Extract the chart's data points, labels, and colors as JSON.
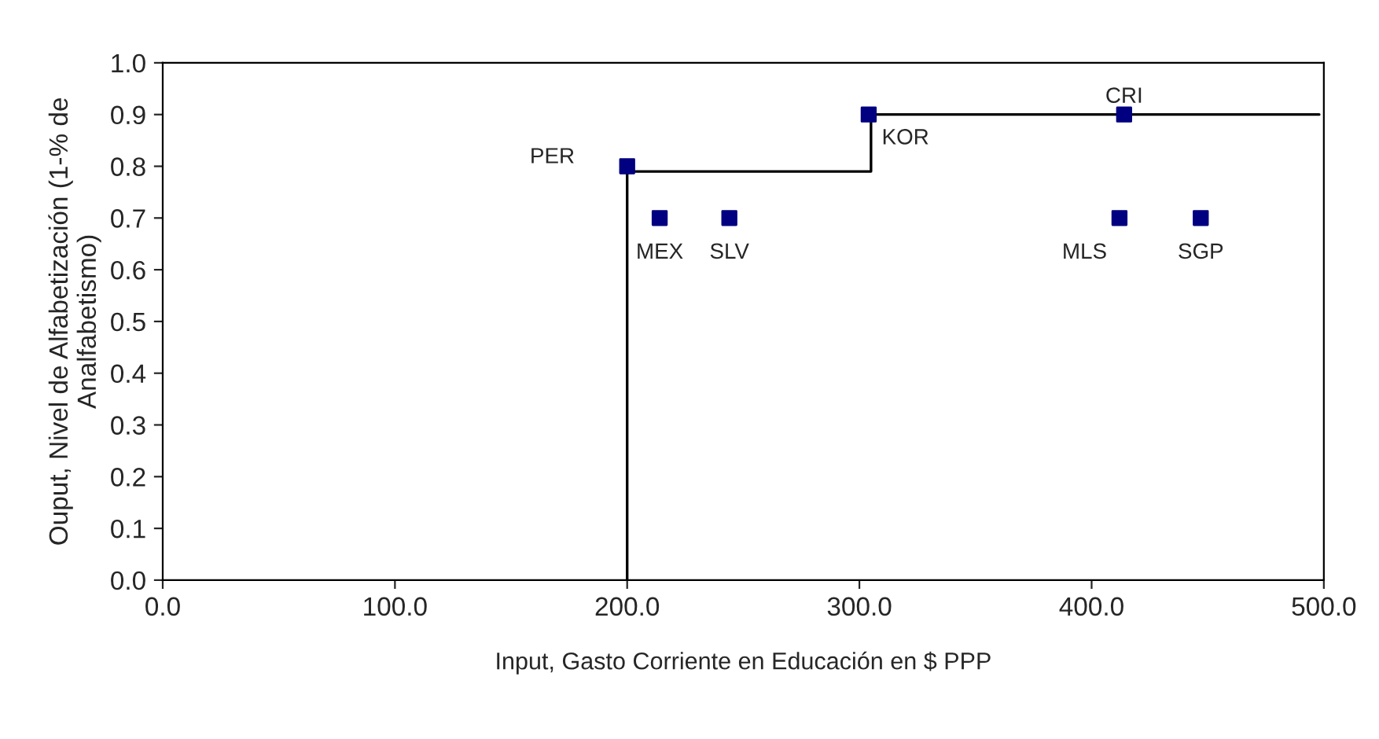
{
  "chart_data": {
    "type": "scatter",
    "xlabel": "Input, Gasto Corriente en Educación en $ PPP",
    "ylabel": "Ouput, Nivel de Alfabetización (1-% de\nAnalfabetismo)",
    "xlim": [
      0,
      500
    ],
    "xticks": [
      {
        "value": 0,
        "label": "0.0"
      },
      {
        "value": 100,
        "label": "100.0"
      },
      {
        "value": 200,
        "label": "200.0"
      },
      {
        "value": 300,
        "label": "300.0"
      },
      {
        "value": 400,
        "label": "400.0"
      },
      {
        "value": 500,
        "label": "500.0"
      }
    ],
    "ylim": [
      0,
      1
    ],
    "yticks": [
      {
        "value": 0,
        "label": "0.0"
      },
      {
        "value": 0.1,
        "label": "0.1"
      },
      {
        "value": 0.2,
        "label": "0.2"
      },
      {
        "value": 0.3,
        "label": "0.3"
      },
      {
        "value": 0.4,
        "label": "0.4"
      },
      {
        "value": 0.5,
        "label": "0.5"
      },
      {
        "value": 0.6,
        "label": "0.6"
      },
      {
        "value": 0.7,
        "label": "0.7"
      },
      {
        "value": 0.8,
        "label": "0.8"
      },
      {
        "value": 0.9,
        "label": "0.9"
      },
      {
        "value": 1.0,
        "label": "1.0"
      }
    ],
    "grid": false,
    "legend": false,
    "marker": "square",
    "series": [
      {
        "type": "line",
        "color": "#000000",
        "x": [
          200,
          200,
          305,
          305,
          498
        ],
        "values": [
          0,
          0.79,
          0.79,
          0.9,
          0.9
        ],
        "marker": "none"
      },
      {
        "color": "#000080",
        "x": [
          200,
          214,
          244,
          304,
          414,
          412,
          447
        ],
        "values": [
          0.8,
          0.7,
          0.7,
          0.9,
          0.9,
          0.7,
          0.7
        ]
      }
    ],
    "annotations": [
      {
        "text": "PER",
        "x": 200,
        "y": 0.8
      },
      {
        "text": "MEX",
        "x": 214,
        "y": 0.7
      },
      {
        "text": "SLV",
        "x": 244,
        "y": 0.7
      },
      {
        "text": "KOR",
        "x": 304,
        "y": 0.9
      },
      {
        "text": "CRI",
        "x": 414,
        "y": 0.9
      },
      {
        "text": "MLS",
        "x": 412,
        "y": 0.7
      },
      {
        "text": "SGP",
        "x": 447,
        "y": 0.7
      }
    ]
  }
}
